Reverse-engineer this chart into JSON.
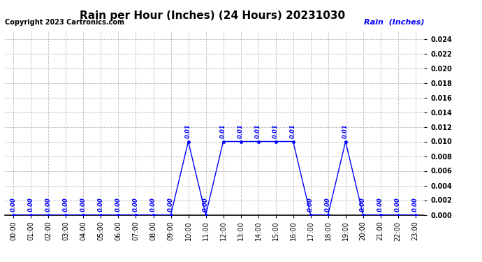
{
  "title": "Rain per Hour (Inches) (24 Hours) 20231030",
  "copyright": "Copyright 2023 Cartronics.com",
  "legend_label": "Rain  (Inches)",
  "hours": [
    0,
    1,
    2,
    3,
    4,
    5,
    6,
    7,
    8,
    9,
    10,
    11,
    12,
    13,
    14,
    15,
    16,
    17,
    18,
    19,
    20,
    21,
    22,
    23
  ],
  "values": [
    0.0,
    0.0,
    0.0,
    0.0,
    0.0,
    0.0,
    0.0,
    0.0,
    0.0,
    0.0,
    0.01,
    0.0,
    0.01,
    0.01,
    0.01,
    0.01,
    0.01,
    0.0,
    0.0,
    0.01,
    0.0,
    0.0,
    0.0,
    0.0
  ],
  "line_color": "#0000ff",
  "marker_color": "#0000ff",
  "label_color": "#0000ff",
  "title_color": "#000000",
  "copyright_color": "#000000",
  "legend_color": "#0000ff",
  "background_color": "#ffffff",
  "grid_color": "#bbbbbb",
  "ylim_min": 0.0,
  "ylim_max": 0.025,
  "yticks": [
    0.0,
    0.002,
    0.004,
    0.006,
    0.008,
    0.01,
    0.012,
    0.014,
    0.016,
    0.018,
    0.02,
    0.022,
    0.024
  ],
  "title_fontsize": 11,
  "label_fontsize": 6,
  "tick_fontsize": 7,
  "copyright_fontsize": 7,
  "legend_fontsize": 8
}
